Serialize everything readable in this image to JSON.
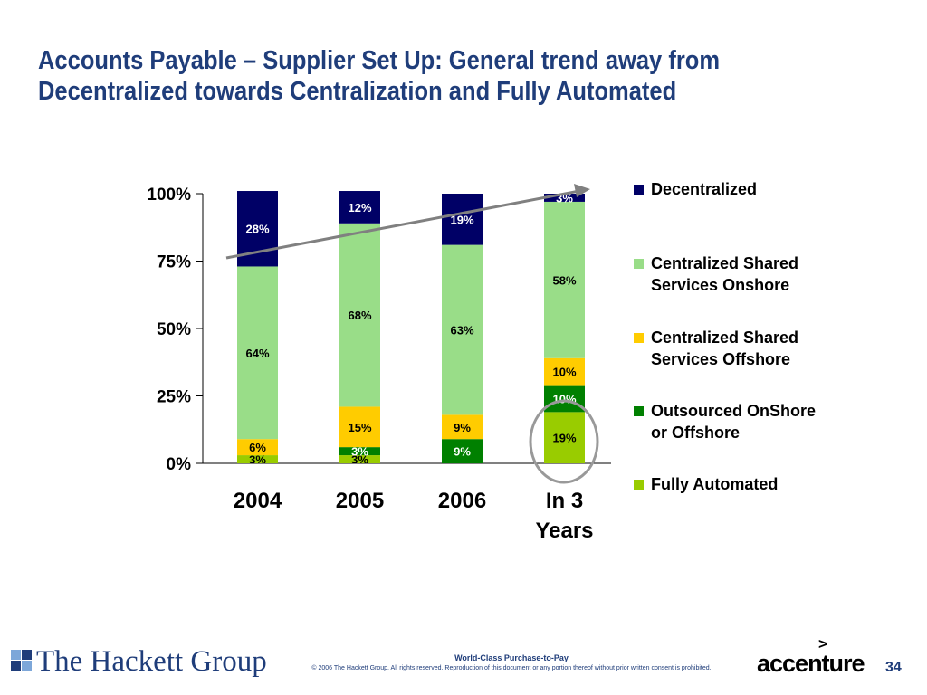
{
  "title": {
    "line1": "Accounts Payable – Supplier Set Up:  General trend away from",
    "line2": "Decentralized towards Centralization and Fully Automated"
  },
  "chart_data": {
    "type": "bar",
    "stacked": true,
    "categories": [
      "2004",
      "2005",
      "2006",
      "In 3 Years"
    ],
    "y_ticks": [
      "0%",
      "25%",
      "50%",
      "75%",
      "100%"
    ],
    "ylim": [
      0,
      100
    ],
    "legend_position": "right",
    "series": [
      {
        "name": "Fully Automated",
        "color": "#99cc00",
        "values": [
          3,
          3,
          0,
          19
        ],
        "labels": [
          "3%",
          "3%",
          "",
          "19%"
        ]
      },
      {
        "name": "Outsourced OnShore or Offshore",
        "color": "#008000",
        "values": [
          0,
          3,
          9,
          10
        ],
        "labels": [
          "",
          "3%",
          "9%",
          "10%"
        ]
      },
      {
        "name": "Centralized Shared Services Offshore",
        "color": "#ffcc00",
        "values": [
          6,
          15,
          9,
          10
        ],
        "labels": [
          "6%",
          "15%",
          "9%",
          "10%"
        ]
      },
      {
        "name": "Centralized Shared Services Onshore",
        "color": "#99dd88",
        "values": [
          64,
          68,
          63,
          58
        ],
        "labels": [
          "64%",
          "68%",
          "63%",
          "58%"
        ]
      },
      {
        "name": "Decentralized",
        "color": "#000066",
        "values": [
          28,
          12,
          19,
          3
        ],
        "labels": [
          "28%",
          "12%",
          "19%",
          "3%"
        ]
      }
    ],
    "trend_arrow_color": "#808080",
    "highlight_circle_color": "#999999"
  },
  "legend": {
    "items": [
      {
        "lines": [
          "Decentralized"
        ],
        "color": "#000066"
      },
      {
        "lines": [
          "Centralized Shared",
          "Services Onshore"
        ],
        "color": "#99dd88"
      },
      {
        "lines": [
          "Centralized Shared",
          "Services Offshore"
        ],
        "color": "#ffcc00"
      },
      {
        "lines": [
          "Outsourced OnShore",
          "or Offshore"
        ],
        "color": "#008000"
      },
      {
        "lines": [
          "Fully Automated"
        ],
        "color": "#99cc00"
      }
    ]
  },
  "footer": {
    "left_logo": "The Hackett Group",
    "center_title": "World-Class Purchase-to-Pay",
    "copyright": "© 2006 The Hackett Group.  All rights reserved. Reproduction of this document or any portion thereof without prior written consent is prohibited.",
    "right_logo": "accenture",
    "right_logo_mark": ">",
    "page_number": "34"
  },
  "colors": {
    "title": "#1f3d7a",
    "hackett_blue": "#1f3d7a"
  }
}
